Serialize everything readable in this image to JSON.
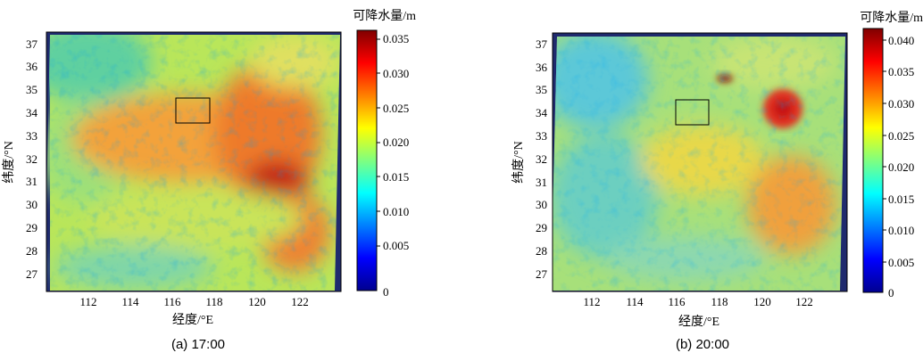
{
  "panels": [
    {
      "id": "a",
      "caption": "(a) 17:00",
      "colorbar_title": "可降水量/m",
      "xlabel": "经度/°E",
      "ylabel": "纬度/°N",
      "x_ticks": [
        "112",
        "114",
        "116",
        "118",
        "120",
        "122"
      ],
      "y_ticks": [
        "37",
        "36",
        "35",
        "34",
        "33",
        "32",
        "31",
        "30",
        "29",
        "28",
        "27"
      ],
      "colorbar_ticks": [
        "0.035",
        "0.030",
        "0.025",
        "0.020",
        "0.015",
        "0.010",
        "0.005",
        "0"
      ]
    },
    {
      "id": "b",
      "caption": "(b) 20:00",
      "colorbar_title": "可降水量/m",
      "xlabel": "经度/°E",
      "ylabel": "纬度/°N",
      "x_ticks": [
        "112",
        "114",
        "116",
        "118",
        "120",
        "122"
      ],
      "y_ticks": [
        "37",
        "36",
        "35",
        "34",
        "33",
        "32",
        "31",
        "30",
        "29",
        "28",
        "27"
      ],
      "colorbar_ticks": [
        "0.040",
        "0.035",
        "0.030",
        "0.025",
        "0.020",
        "0.015",
        "0.010",
        "0.005",
        "0"
      ]
    }
  ],
  "chart_data": [
    {
      "type": "heatmap",
      "caption": "(a) 17:00",
      "xlabel": "经度/°E",
      "ylabel": "纬度/°N",
      "xlim": [
        110.3,
        123.8
      ],
      "ylim": [
        26.5,
        37.6
      ],
      "colorbar": {
        "title": "可降水量/m",
        "min": 0,
        "max": 0.035,
        "ticks": [
          0,
          0.005,
          0.01,
          0.015,
          0.02,
          0.025,
          0.03,
          0.035
        ]
      },
      "study_area_box": {
        "lon": [
          116,
          117.8
        ],
        "lat": [
          33.8,
          34.8
        ]
      },
      "field_features": [
        {
          "lon": 121.2,
          "lat": 30.9,
          "value": 0.035
        },
        {
          "lon": 122.5,
          "lat": 33.0,
          "value": 0.03
        },
        {
          "lon": 117.5,
          "lat": 32.5,
          "value": 0.027
        },
        {
          "lon": 113.0,
          "lat": 36.5,
          "value": 0.015
        }
      ],
      "colormap": "jet"
    },
    {
      "type": "heatmap",
      "caption": "(b) 20:00",
      "xlabel": "经度/°E",
      "ylabel": "纬度/°N",
      "xlim": [
        110.3,
        123.8
      ],
      "ylim": [
        26.5,
        37.6
      ],
      "colorbar": {
        "title": "可降水量/m",
        "min": 0,
        "max": 0.04,
        "ticks": [
          0,
          0.005,
          0.01,
          0.015,
          0.02,
          0.025,
          0.03,
          0.035,
          0.04
        ]
      },
      "study_area_box": {
        "lon": [
          116,
          117.8
        ],
        "lat": [
          33.8,
          34.8
        ]
      },
      "field_features": [
        {
          "lon": 120.9,
          "lat": 33.2,
          "value": 0.035
        },
        {
          "lon": 122.4,
          "lat": 30.2,
          "value": 0.03
        },
        {
          "lon": 119.3,
          "lat": 36.2,
          "value": 0.04
        },
        {
          "lon": 112.5,
          "lat": 36.6,
          "value": 0.012
        }
      ],
      "colormap": "jet"
    }
  ]
}
